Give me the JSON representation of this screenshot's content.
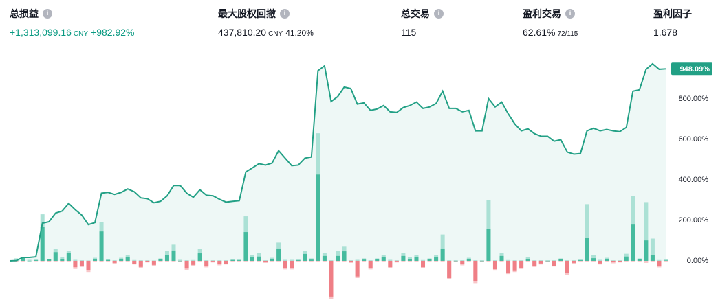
{
  "stats": [
    {
      "label": "总损益",
      "value": "+1,313,099.16",
      "unit": "CNY",
      "extra": "+982.92%"
    },
    {
      "label": "最大股权回撤",
      "value": "437,810.20",
      "unit": "CNY",
      "extra": "41.20%"
    },
    {
      "label": "总交易",
      "value": "115"
    },
    {
      "label": "盈利交易",
      "value": "62.61%",
      "extra": "72/115"
    },
    {
      "label": "盈利因子",
      "value": "1.678"
    }
  ],
  "chart_data": {
    "type": "line-bar",
    "ylim": [
      -190,
      1000
    ],
    "yticks": [
      {
        "value": 0,
        "label": "0.00%"
      },
      {
        "value": 200,
        "label": "200.00%"
      },
      {
        "value": 400,
        "label": "400.00%"
      },
      {
        "value": 600,
        "label": "600.00%"
      },
      {
        "value": 800,
        "label": "800.00%"
      }
    ],
    "equity": {
      "color": "#22a085",
      "fill": "#eef8f6",
      "last_value_label": "948.09%",
      "values": [
        0,
        1,
        17,
        17,
        20,
        186,
        193,
        236,
        246,
        284,
        253,
        226,
        179,
        189,
        334,
        338,
        328,
        338,
        355,
        341,
        311,
        307,
        287,
        294,
        321,
        372,
        372,
        334,
        314,
        351,
        324,
        321,
        304,
        290,
        294,
        297,
        439,
        459,
        480,
        473,
        483,
        544,
        507,
        470,
        473,
        507,
        513,
        939,
        963,
        787,
        811,
        858,
        851,
        774,
        780,
        743,
        750,
        767,
        736,
        733,
        757,
        767,
        784,
        753,
        760,
        777,
        838,
        753,
        753,
        736,
        743,
        642,
        642,
        801,
        760,
        784,
        726,
        676,
        642,
        652,
        628,
        615,
        615,
        591,
        598,
        537,
        527,
        530,
        642,
        655,
        642,
        649,
        642,
        638,
        659,
        838,
        845,
        946,
        973,
        946,
        948.09
      ]
    },
    "pnl": {
      "win_color": "#45bb9e",
      "loss_color": "#ef7f86",
      "values": [
        1,
        16,
        0,
        3,
        166,
        7,
        43,
        10,
        38,
        -31,
        -27,
        -47,
        10,
        145,
        4,
        -10,
        10,
        17,
        -14,
        -30,
        -4,
        -20,
        7,
        27,
        51,
        0,
        -38,
        -20,
        37,
        -27,
        -3,
        -17,
        -14,
        4,
        3,
        142,
        20,
        21,
        -7,
        10,
        61,
        -37,
        -37,
        3,
        34,
        6,
        426,
        24,
        -176,
        24,
        47,
        -7,
        -77,
        6,
        -37,
        7,
        17,
        -31,
        -3,
        24,
        10,
        17,
        -31,
        7,
        17,
        61,
        -85,
        0,
        -17,
        7,
        -101,
        0,
        159,
        -41,
        24,
        -58,
        -50,
        -34,
        10,
        -24,
        -13,
        0,
        -24,
        7,
        -61,
        -10,
        3,
        112,
        13,
        -13,
        7,
        -7,
        -4,
        21,
        179,
        7,
        101,
        27,
        -27,
        2
      ]
    },
    "runup": {
      "color": "#abe1d5",
      "values": [
        12,
        20,
        5,
        8,
        230,
        10,
        60,
        20,
        50,
        5,
        3,
        2,
        15,
        190,
        10,
        3,
        15,
        30,
        4,
        3,
        3,
        2,
        12,
        50,
        80,
        5,
        3,
        4,
        60,
        3,
        3,
        3,
        3,
        8,
        8,
        220,
        30,
        40,
        3,
        15,
        90,
        5,
        5,
        8,
        50,
        12,
        630,
        40,
        3,
        50,
        70,
        3,
        5,
        12,
        3,
        12,
        30,
        5,
        3,
        40,
        20,
        30,
        4,
        12,
        30,
        130,
        3,
        3,
        3,
        15,
        3,
        3,
        300,
        3,
        40,
        4,
        3,
        3,
        20,
        3,
        3,
        3,
        3,
        12,
        3,
        3,
        8,
        280,
        30,
        5,
        15,
        3,
        3,
        35,
        320,
        12,
        290,
        110,
        4,
        8
      ]
    },
    "drawdown": {
      "color": "#f8c5c8",
      "values": [
        -5,
        -3,
        -2,
        -2,
        -3,
        -4,
        -3,
        -5,
        -3,
        -40,
        -30,
        -55,
        -3,
        -4,
        -3,
        -15,
        -3,
        -3,
        -18,
        -35,
        -8,
        -25,
        -3,
        -3,
        -3,
        -4,
        -45,
        -25,
        -3,
        -32,
        -8,
        -22,
        -18,
        -3,
        -3,
        -3,
        -3,
        -3,
        -10,
        -3,
        -3,
        -42,
        -42,
        -3,
        -3,
        -3,
        -3,
        -3,
        -190,
        -3,
        -3,
        -10,
        -85,
        -3,
        -42,
        -3,
        -3,
        -36,
        -8,
        -3,
        -3,
        -3,
        -36,
        -3,
        -3,
        -3,
        -90,
        -5,
        -22,
        -3,
        -110,
        -4,
        -3,
        -48,
        -3,
        -65,
        -55,
        -40,
        -3,
        -30,
        -18,
        -4,
        -28,
        -3,
        -68,
        -14,
        -3,
        -3,
        -3,
        -18,
        -3,
        -12,
        -8,
        -3,
        -3,
        -3,
        -10,
        -3,
        -32,
        -3
      ]
    }
  }
}
